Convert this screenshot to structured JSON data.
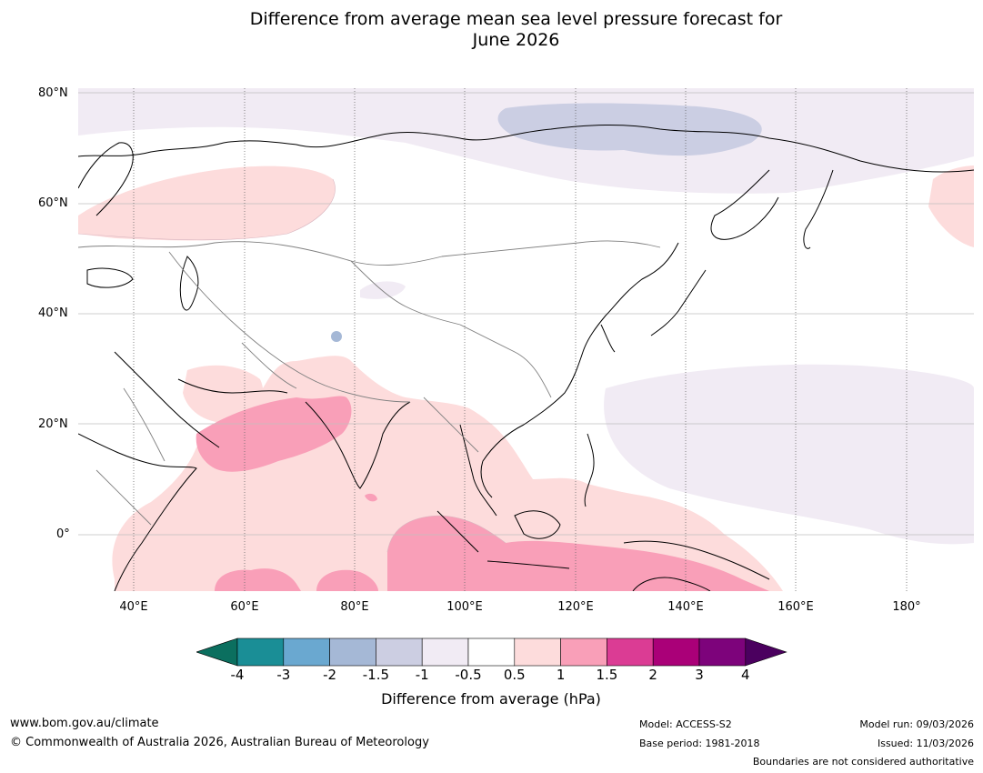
{
  "title": {
    "line1": "Difference from average mean sea level pressure forecast for",
    "line2": "June 2026"
  },
  "map": {
    "lat_labels": [
      "80°N",
      "60°N",
      "40°N",
      "20°N",
      "0°"
    ],
    "lon_labels": [
      "40°E",
      "60°E",
      "80°E",
      "100°E",
      "120°E",
      "140°E",
      "160°E",
      "180°"
    ]
  },
  "colorbar": {
    "ticks": [
      "-4",
      "-3",
      "-2",
      "-1.5",
      "-1",
      "-0.5",
      "0.5",
      "1",
      "1.5",
      "2",
      "3",
      "4"
    ],
    "colors": [
      "#1a8e96",
      "#6aa8d0",
      "#a5b8d6",
      "#ccceE2",
      "#f1ebf4",
      "#ffffff",
      "#fddcdc",
      "#f99fb8",
      "#db3c94",
      "#aa0078",
      "#7d037b"
    ],
    "low_arrow_color": "#0b6f5f",
    "high_arrow_color": "#4b005f",
    "label": "Difference from average (hPa)"
  },
  "footer": {
    "url": "www.bom.gov.au/climate",
    "copyright": "© Commonwealth of Australia 2026, Australian Bureau of Meteorology",
    "model": "Model: ACCESS-S2",
    "base_period": "Base period: 1981-2018",
    "model_run": "Model run: 09/03/2026",
    "issued": "Issued: 11/03/2026",
    "disclaimer": "Boundaries are not considered authoritative"
  }
}
